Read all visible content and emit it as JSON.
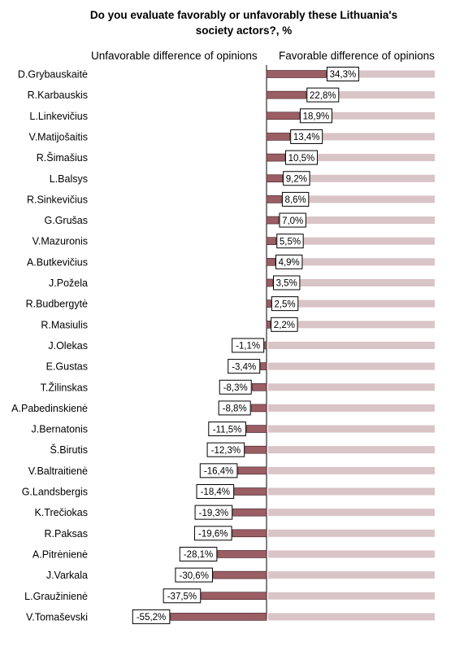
{
  "title": {
    "line1": "Do you  evaluate favorably or unfavorably these Lithuania's",
    "line2": "society actors?, %"
  },
  "headers": {
    "left": "Unfavorable  difference of opinions",
    "right": "Favorable difference of opinions"
  },
  "colors": {
    "bar_fill": "#9b5e65",
    "bar_stroke": "#3a1a1e",
    "stripe_fill": "#d9c4c7",
    "label_box_fill": "#ffffff",
    "label_box_stroke": "#000000"
  },
  "chart_data": {
    "type": "bar",
    "orientation": "horizontal",
    "title": "Do you  evaluate favorably or unfavorably these Lithuania's society actors?, %",
    "categories": [
      "D.Grybauskaitė",
      "R.Karbauskis",
      "L.Linkevičius",
      "V.Matijošaitis",
      "R.Šimašius",
      "L.Balsys",
      "R.Sinkevičius",
      "G.Grušas",
      "V.Mazuronis",
      "A.Butkevičius",
      "J.Požela",
      "R.Budbergytė",
      "R.Masiulis",
      "J.Olekas",
      "E.Gustas",
      "T.Žilinskas",
      "A.Pabedinskienė",
      "J.Bernatonis",
      "Š.Birutis",
      "V.Baltraitienė",
      "G.Landsbergis",
      "K.Trečiokas",
      "R.Paksas",
      "A.Pitrėnienė",
      "J.Varkala",
      "L.Graužinienė",
      "V.Tomaševski"
    ],
    "values": [
      34.3,
      22.8,
      18.9,
      13.4,
      10.5,
      9.2,
      8.6,
      7.0,
      5.5,
      4.9,
      3.5,
      2.5,
      2.2,
      -1.1,
      -3.4,
      -8.3,
      -8.8,
      -11.5,
      -12.3,
      -16.4,
      -18.4,
      -19.3,
      -19.6,
      -28.1,
      -30.6,
      -37.5,
      -55.2
    ],
    "value_labels": [
      "34,3%",
      "22,8%",
      "18,9%",
      "13,4%",
      "10,5%",
      "9,2%",
      "8,6%",
      "7,0%",
      "5,5%",
      "4,9%",
      "3,5%",
      "2,5%",
      "2,2%",
      "-1,1%",
      "-3,4%",
      "-8,3%",
      "-8,8%",
      "-11,5%",
      "-12,3%",
      "-16,4%",
      "-18,4%",
      "-19,3%",
      "-19,6%",
      "-28,1%",
      "-30,6%",
      "-37,5%",
      "-55,2%"
    ],
    "xlim": [
      -55.2,
      34.3
    ]
  }
}
